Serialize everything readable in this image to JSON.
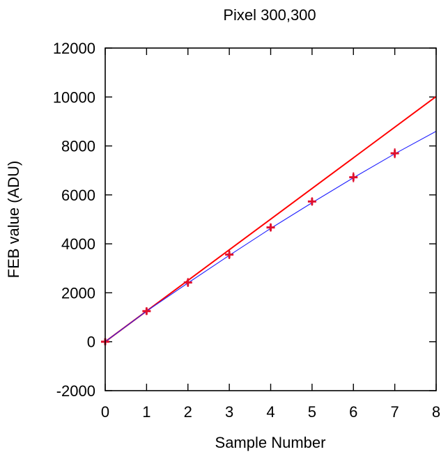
{
  "chart_data": {
    "type": "scatter",
    "title": "Pixel 300,300",
    "xlabel": "Sample Number",
    "ylabel": "FEB value (ADU)",
    "xlim": [
      0,
      8
    ],
    "ylim": [
      -2000,
      12000
    ],
    "x_ticks": [
      "0",
      "1",
      "2",
      "3",
      "4",
      "5",
      "6",
      "7",
      "8"
    ],
    "y_ticks": [
      "-2000",
      "0",
      "2000",
      "4000",
      "6000",
      "8000",
      "10000",
      "12000"
    ],
    "grid": false,
    "legend": "none",
    "series": [
      {
        "type": "scatter",
        "color": "#e0102e",
        "marker": "plus-with-error-bars",
        "x": [
          0,
          1,
          2,
          3,
          4,
          5,
          6,
          7
        ],
        "y": [
          0,
          1250,
          2420,
          3560,
          4670,
          5730,
          6720,
          7700
        ],
        "yerr": [
          120,
          160,
          180,
          180,
          170,
          170,
          200,
          200
        ]
      },
      {
        "type": "line",
        "color": "#ff0000",
        "x": [
          0,
          8
        ],
        "y": [
          0,
          10020
        ]
      },
      {
        "type": "line",
        "color": "#2020ff",
        "x": [
          0,
          1,
          2,
          3,
          4,
          5,
          6,
          7,
          8
        ],
        "y": [
          0,
          1250,
          2400,
          3530,
          4630,
          5680,
          6700,
          7680,
          8600
        ]
      }
    ]
  }
}
